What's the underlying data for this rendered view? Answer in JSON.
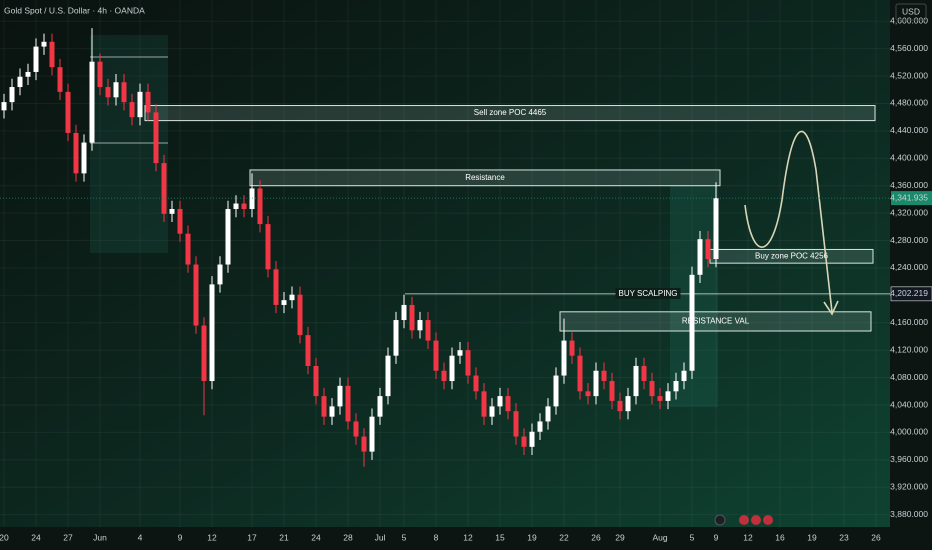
{
  "chart_data": {
    "type": "candlestick",
    "title": "Gold Spot / U.S. Dollar · 4h · OANDA",
    "currency": "USD",
    "categories": [
      "20",
      null,
      null,
      null,
      "24",
      null,
      null,
      null,
      "27",
      null,
      null,
      null,
      "Jun",
      null,
      null,
      null,
      null,
      "4",
      null,
      null,
      null,
      null,
      "9",
      null,
      null,
      null,
      "12",
      null,
      null,
      null,
      null,
      "17",
      null,
      null,
      null,
      "21",
      null,
      null,
      null,
      "24",
      null,
      null,
      null,
      "28",
      null,
      null,
      null,
      "Jul",
      null,
      null,
      "5",
      null,
      null,
      null,
      "8",
      null,
      null,
      null,
      "12",
      null,
      null,
      null,
      "15",
      null,
      null,
      null,
      "19",
      null,
      null,
      null,
      "22",
      null,
      null,
      null,
      "26",
      null,
      null,
      "29",
      null,
      null,
      null,
      null,
      "Aug",
      null,
      null,
      null,
      "5",
      null,
      null,
      "9",
      null,
      null,
      null,
      "12",
      null,
      null,
      null,
      "16",
      null,
      null,
      null,
      "19",
      null,
      null,
      null,
      "23",
      null,
      null,
      null,
      "26"
    ],
    "open": [
      4470,
      4482,
      4504,
      4519,
      4526,
      4563,
      4570,
      4533,
      4497,
      4437,
      4378,
      4423,
      4541,
      4504,
      4489,
      4511,
      4482,
      4460,
      4497,
      4467,
      4393,
      4319,
      4326,
      4290,
      4245,
      4156,
      4075,
      4216,
      4245,
      4326,
      4334,
      4326,
      4356,
      4304,
      4238,
      4186,
      4193,
      4201,
      4142,
      4097,
      4053,
      4023,
      4038,
      4068,
      4016,
      3994,
      3972,
      4023,
      4053,
      4112,
      4164,
      4186,
      4149,
      4164,
      4134,
      4090,
      4075,
      4112,
      4120,
      4083,
      4060,
      4023,
      4038,
      4053,
      4031,
      3994,
      3979,
      4001,
      4016,
      4038,
      4083,
      4134,
      4112,
      4060,
      4053,
      4090,
      4075,
      4046,
      4031,
      4053,
      4097,
      4075,
      4053,
      4046,
      4060,
      4075,
      4090,
      4230,
      4282,
      4253,
      null,
      null,
      null,
      null,
      null,
      null,
      null,
      null,
      null,
      null,
      null,
      null,
      null,
      null,
      null,
      null,
      null,
      null,
      null,
      null
    ],
    "high": [
      4494,
      4516,
      4531,
      4538,
      4575,
      4582,
      4582,
      4545,
      4509,
      4449,
      4435,
      4590,
      4553,
      4516,
      4523,
      4523,
      4494,
      4509,
      4509,
      4479,
      4405,
      4338,
      4338,
      4302,
      4257,
      4168,
      4228,
      4257,
      4338,
      4346,
      4346,
      4378,
      4368,
      4316,
      4250,
      4205,
      4213,
      4213,
      4154,
      4109,
      4065,
      4050,
      4080,
      4080,
      4028,
      4006,
      4035,
      4065,
      4124,
      4176,
      4201,
      4198,
      4176,
      4176,
      4146,
      4102,
      4124,
      4132,
      4132,
      4095,
      4072,
      4050,
      4065,
      4065,
      4043,
      4006,
      4013,
      4028,
      4050,
      4095,
      4166,
      4146,
      4124,
      4072,
      4102,
      4102,
      4087,
      4058,
      4065,
      4109,
      4109,
      4087,
      4065,
      4072,
      4087,
      4102,
      4242,
      4294,
      4294,
      4365,
      null,
      null,
      null,
      null,
      null,
      null,
      null,
      null,
      null,
      null,
      null,
      null,
      null,
      null,
      null,
      null,
      null,
      null,
      null,
      null
    ],
    "low": [
      4458,
      4470,
      4492,
      4507,
      4514,
      4551,
      4521,
      4485,
      4425,
      4366,
      4366,
      4411,
      4492,
      4477,
      4477,
      4470,
      4448,
      4448,
      4455,
      4381,
      4307,
      4307,
      4278,
      4233,
      4144,
      4025,
      4063,
      4204,
      4233,
      4314,
      4314,
      4314,
      4292,
      4226,
      4174,
      4174,
      4181,
      4130,
      4085,
      4041,
      4011,
      4011,
      4026,
      4004,
      3982,
      3950,
      3960,
      4011,
      4041,
      4100,
      4152,
      4137,
      4137,
      4122,
      4078,
      4063,
      4063,
      4100,
      4071,
      4048,
      4011,
      4011,
      4026,
      4019,
      3982,
      3967,
      3967,
      3989,
      4004,
      4026,
      4071,
      4100,
      4048,
      4041,
      4041,
      4063,
      4034,
      4019,
      4019,
      4041,
      4063,
      4041,
      4034,
      4034,
      4048,
      4063,
      4078,
      4218,
      4241,
      4241,
      null,
      null,
      null,
      null,
      null,
      null,
      null,
      null,
      null,
      null,
      null,
      null,
      null,
      null,
      null,
      null,
      null,
      null,
      null,
      null
    ],
    "close": [
      4482,
      4504,
      4519,
      4526,
      4563,
      4570,
      4533,
      4497,
      4437,
      4378,
      4423,
      4541,
      4504,
      4489,
      4511,
      4482,
      4460,
      4497,
      4467,
      4393,
      4319,
      4326,
      4290,
      4245,
      4156,
      4075,
      4216,
      4245,
      4326,
      4334,
      4326,
      4356,
      4304,
      4238,
      4186,
      4193,
      4201,
      4142,
      4097,
      4053,
      4023,
      4038,
      4068,
      4016,
      3994,
      3972,
      4023,
      4053,
      4112,
      4164,
      4186,
      4149,
      4164,
      4134,
      4090,
      4075,
      4112,
      4120,
      4083,
      4060,
      4023,
      4038,
      4053,
      4031,
      3994,
      3979,
      4001,
      4016,
      4038,
      4083,
      4134,
      4112,
      4060,
      4053,
      4090,
      4075,
      4046,
      4031,
      4053,
      4097,
      4075,
      4053,
      4046,
      4060,
      4075,
      4090,
      4230,
      4282,
      4253,
      4342,
      null,
      null,
      null,
      null,
      null,
      null,
      null,
      null,
      null,
      null,
      null,
      null,
      null,
      null,
      null,
      null,
      null,
      null,
      null,
      null
    ],
    "up_color": "#ffffff",
    "down_color": "#f23645",
    "ylim": [
      3862,
      4631
    ],
    "yticks": [
      {
        "value": 3880,
        "label": "3,880.000"
      },
      {
        "value": 3920,
        "label": "3,920.000"
      },
      {
        "value": 3960,
        "label": "3,960.000"
      },
      {
        "value": 4000,
        "label": "4,000.000"
      },
      {
        "value": 4040,
        "label": "4,040.000"
      },
      {
        "value": 4080,
        "label": "4,080.000"
      },
      {
        "value": 4120,
        "label": "4,120.000"
      },
      {
        "value": 4160,
        "label": "4,160.000"
      },
      {
        "value": 4200,
        "label": "4,200.000"
      },
      {
        "value": 4240,
        "label": "4,240.000"
      },
      {
        "value": 4280,
        "label": "4,280.000"
      },
      {
        "value": 4320,
        "label": "4,320.000"
      },
      {
        "value": 4360,
        "label": "4,360.000"
      },
      {
        "value": 4400,
        "label": "4,400.000"
      },
      {
        "value": 4440,
        "label": "4,440.000"
      },
      {
        "value": 4480,
        "label": "4,480.000"
      },
      {
        "value": 4520,
        "label": "4,520.000"
      },
      {
        "value": 4560,
        "label": "4,560.000"
      },
      {
        "value": 4600,
        "label": "4,600.000"
      }
    ],
    "grid": true,
    "price_markers": [
      {
        "value": 4341.935,
        "label": "4,341.935",
        "color": "#1b8a6b"
      },
      {
        "value": 4202.219,
        "label": "4,202.219",
        "color": "#131722"
      }
    ],
    "zones": [
      {
        "label": "Sell zone POC 4465",
        "range": [
          4455,
          4477
        ]
      },
      {
        "label": "Resistance",
        "range": [
          4360,
          4383
        ]
      },
      {
        "label": "Buy zone POC 4256",
        "range": [
          4247,
          4267
        ]
      },
      {
        "label": "RESISTANCE VAL",
        "range": [
          4148,
          4176
        ]
      }
    ],
    "level_line": {
      "label": "BUY SCALPING",
      "value": 4202.219
    }
  }
}
